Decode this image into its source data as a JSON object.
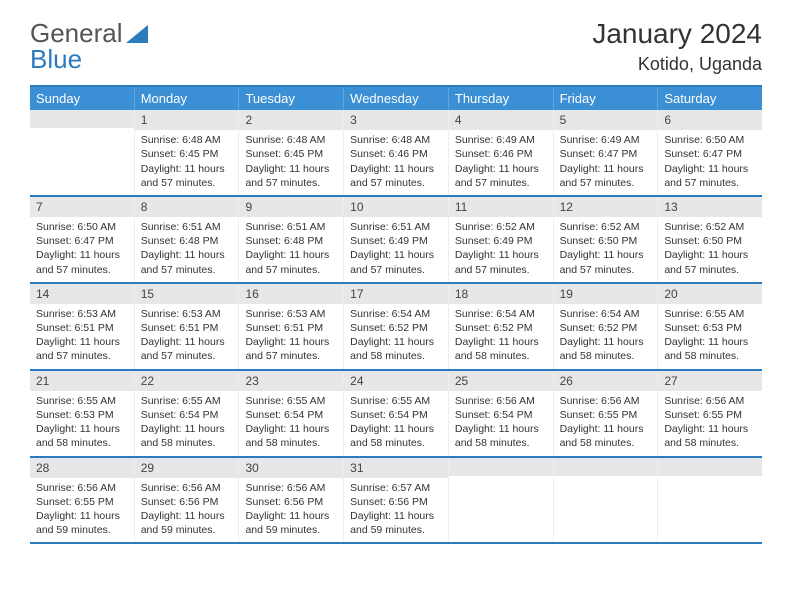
{
  "logo": {
    "text1": "General",
    "text2": "Blue"
  },
  "title": "January 2024",
  "location": "Kotido, Uganda",
  "colors": {
    "header_bg": "#3b8fd4",
    "border_blue": "#2b7bbf",
    "daynum_bg": "#e6e7e9",
    "text": "#333333"
  },
  "day_names": [
    "Sunday",
    "Monday",
    "Tuesday",
    "Wednesday",
    "Thursday",
    "Friday",
    "Saturday"
  ],
  "weeks": [
    [
      {
        "n": "",
        "sr": "",
        "ss": "",
        "dl": ""
      },
      {
        "n": "1",
        "sr": "6:48 AM",
        "ss": "6:45 PM",
        "dl": "11 hours and 57 minutes."
      },
      {
        "n": "2",
        "sr": "6:48 AM",
        "ss": "6:45 PM",
        "dl": "11 hours and 57 minutes."
      },
      {
        "n": "3",
        "sr": "6:48 AM",
        "ss": "6:46 PM",
        "dl": "11 hours and 57 minutes."
      },
      {
        "n": "4",
        "sr": "6:49 AM",
        "ss": "6:46 PM",
        "dl": "11 hours and 57 minutes."
      },
      {
        "n": "5",
        "sr": "6:49 AM",
        "ss": "6:47 PM",
        "dl": "11 hours and 57 minutes."
      },
      {
        "n": "6",
        "sr": "6:50 AM",
        "ss": "6:47 PM",
        "dl": "11 hours and 57 minutes."
      }
    ],
    [
      {
        "n": "7",
        "sr": "6:50 AM",
        "ss": "6:47 PM",
        "dl": "11 hours and 57 minutes."
      },
      {
        "n": "8",
        "sr": "6:51 AM",
        "ss": "6:48 PM",
        "dl": "11 hours and 57 minutes."
      },
      {
        "n": "9",
        "sr": "6:51 AM",
        "ss": "6:48 PM",
        "dl": "11 hours and 57 minutes."
      },
      {
        "n": "10",
        "sr": "6:51 AM",
        "ss": "6:49 PM",
        "dl": "11 hours and 57 minutes."
      },
      {
        "n": "11",
        "sr": "6:52 AM",
        "ss": "6:49 PM",
        "dl": "11 hours and 57 minutes."
      },
      {
        "n": "12",
        "sr": "6:52 AM",
        "ss": "6:50 PM",
        "dl": "11 hours and 57 minutes."
      },
      {
        "n": "13",
        "sr": "6:52 AM",
        "ss": "6:50 PM",
        "dl": "11 hours and 57 minutes."
      }
    ],
    [
      {
        "n": "14",
        "sr": "6:53 AM",
        "ss": "6:51 PM",
        "dl": "11 hours and 57 minutes."
      },
      {
        "n": "15",
        "sr": "6:53 AM",
        "ss": "6:51 PM",
        "dl": "11 hours and 57 minutes."
      },
      {
        "n": "16",
        "sr": "6:53 AM",
        "ss": "6:51 PM",
        "dl": "11 hours and 57 minutes."
      },
      {
        "n": "17",
        "sr": "6:54 AM",
        "ss": "6:52 PM",
        "dl": "11 hours and 58 minutes."
      },
      {
        "n": "18",
        "sr": "6:54 AM",
        "ss": "6:52 PM",
        "dl": "11 hours and 58 minutes."
      },
      {
        "n": "19",
        "sr": "6:54 AM",
        "ss": "6:52 PM",
        "dl": "11 hours and 58 minutes."
      },
      {
        "n": "20",
        "sr": "6:55 AM",
        "ss": "6:53 PM",
        "dl": "11 hours and 58 minutes."
      }
    ],
    [
      {
        "n": "21",
        "sr": "6:55 AM",
        "ss": "6:53 PM",
        "dl": "11 hours and 58 minutes."
      },
      {
        "n": "22",
        "sr": "6:55 AM",
        "ss": "6:54 PM",
        "dl": "11 hours and 58 minutes."
      },
      {
        "n": "23",
        "sr": "6:55 AM",
        "ss": "6:54 PM",
        "dl": "11 hours and 58 minutes."
      },
      {
        "n": "24",
        "sr": "6:55 AM",
        "ss": "6:54 PM",
        "dl": "11 hours and 58 minutes."
      },
      {
        "n": "25",
        "sr": "6:56 AM",
        "ss": "6:54 PM",
        "dl": "11 hours and 58 minutes."
      },
      {
        "n": "26",
        "sr": "6:56 AM",
        "ss": "6:55 PM",
        "dl": "11 hours and 58 minutes."
      },
      {
        "n": "27",
        "sr": "6:56 AM",
        "ss": "6:55 PM",
        "dl": "11 hours and 58 minutes."
      }
    ],
    [
      {
        "n": "28",
        "sr": "6:56 AM",
        "ss": "6:55 PM",
        "dl": "11 hours and 59 minutes."
      },
      {
        "n": "29",
        "sr": "6:56 AM",
        "ss": "6:56 PM",
        "dl": "11 hours and 59 minutes."
      },
      {
        "n": "30",
        "sr": "6:56 AM",
        "ss": "6:56 PM",
        "dl": "11 hours and 59 minutes."
      },
      {
        "n": "31",
        "sr": "6:57 AM",
        "ss": "6:56 PM",
        "dl": "11 hours and 59 minutes."
      },
      {
        "n": "",
        "sr": "",
        "ss": "",
        "dl": ""
      },
      {
        "n": "",
        "sr": "",
        "ss": "",
        "dl": ""
      },
      {
        "n": "",
        "sr": "",
        "ss": "",
        "dl": ""
      }
    ]
  ],
  "labels": {
    "sunrise": "Sunrise:",
    "sunset": "Sunset:",
    "daylight": "Daylight:"
  }
}
